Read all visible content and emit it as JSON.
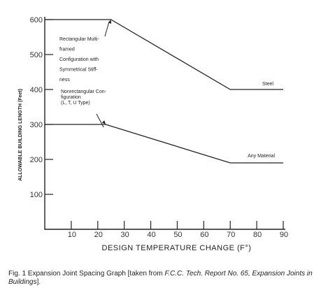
{
  "chart_data": {
    "type": "line",
    "xlabel": "DESIGN TEMPERATURE CHANGE (F°)",
    "ylabel": "ALLOWABLE BUILDING LENGTH (Feet)",
    "xlim": [
      0,
      90
    ],
    "ylim": [
      0,
      600
    ],
    "x_ticks": [
      "10",
      "20",
      "30",
      "40",
      "50",
      "60",
      "70",
      "80",
      "90"
    ],
    "y_ticks": [
      "100",
      "200",
      "300",
      "400",
      "500",
      "600"
    ],
    "grid": false,
    "series": [
      {
        "name": "Steel",
        "x": [
          0,
          25,
          70,
          90
        ],
        "y": [
          600,
          600,
          400,
          400
        ]
      },
      {
        "name": "Any Material",
        "x": [
          0,
          23,
          70,
          90
        ],
        "y": [
          300,
          300,
          190,
          190
        ]
      }
    ],
    "annotations": [
      {
        "lines": [
          "Rectangular Multi-",
          "framed",
          "Configuration with",
          "Symmetrical Stiff-",
          "ness"
        ]
      },
      {
        "lines": [
          "Nonrectangular Con-",
          "figuration",
          "(L, T, U Type)"
        ]
      }
    ]
  },
  "caption": {
    "prefix": "Fig. 1  Expansion Joint Spacing Graph [taken from ",
    "italic": "F.C.C. Tech. Report No. 65, Expansion Joints in Buildings",
    "suffix": "]."
  }
}
